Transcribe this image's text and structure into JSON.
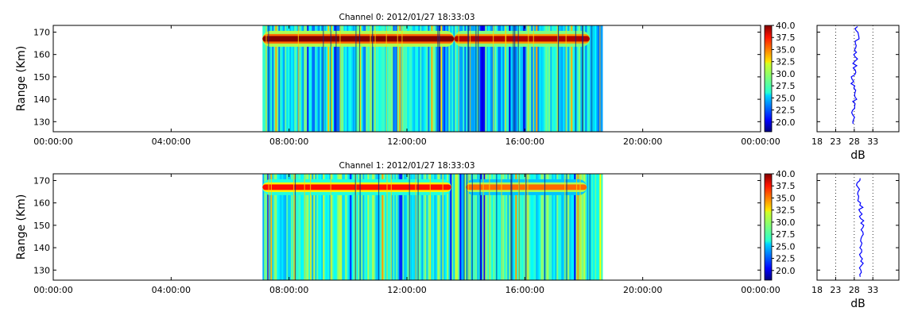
{
  "chart_data": [
    {
      "type": "heatmap",
      "title": "Channel 0: 2012/01/27 18:33:03",
      "xlabel": "",
      "ylabel": "Range (Km)",
      "x_tick_labels": [
        "00:00:00",
        "04:00:00",
        "08:00:00",
        "12:00:00",
        "16:00:00",
        "20:00:00",
        "00:00:00"
      ],
      "xlim_hours": [
        0,
        24
      ],
      "y_ticks": [
        130,
        140,
        150,
        160,
        170
      ],
      "ylim": [
        125.5,
        173
      ],
      "data_hours": [
        7.1,
        18.6
      ],
      "colorbar": {
        "ticks": [
          "40.0",
          "37.5",
          "35.0",
          "32.5",
          "30.0",
          "27.5",
          "25.0",
          "22.5",
          "20.0"
        ],
        "range": [
          18,
          40
        ],
        "colormap": "jet"
      },
      "echo_layers": [
        {
          "start_hour": 7.1,
          "end_hour": 13.6,
          "center_km": 167,
          "value_db": 40
        },
        {
          "start_hour": 13.6,
          "end_hour": 18.2,
          "center_km": 167,
          "value_db": 39
        }
      ],
      "profile": {
        "xlabel": "dB",
        "x_tick_labels": [
          "18",
          "23",
          "28",
          "33"
        ],
        "x_ticks": [
          18,
          23,
          28,
          33
        ],
        "xlim": [
          18,
          40
        ],
        "gridlines_db": [
          23,
          28,
          33
        ],
        "y": [
          129,
          133,
          137,
          141,
          145,
          149,
          153,
          157,
          161,
          165,
          169,
          172.5
        ],
        "x": [
          27.7,
          27.6,
          28.1,
          28.2,
          27.9,
          27.4,
          28.3,
          28.2,
          28.6,
          28.3,
          29.1,
          28.9
        ]
      }
    },
    {
      "type": "heatmap",
      "title": "Channel 1: 2012/01/27 18:33:03",
      "xlabel": "",
      "ylabel": "Range (Km)",
      "x_tick_labels": [
        "00:00:00",
        "04:00:00",
        "08:00:00",
        "12:00:00",
        "16:00:00",
        "20:00:00",
        "00:00:00"
      ],
      "xlim_hours": [
        0,
        24
      ],
      "y_ticks": [
        130,
        140,
        150,
        160,
        170
      ],
      "ylim": [
        125.5,
        173
      ],
      "data_hours": [
        7.1,
        18.6
      ],
      "colorbar": {
        "ticks": [
          "40.0",
          "37.5",
          "35.0",
          "32.5",
          "30.0",
          "27.5",
          "25.0",
          "22.5",
          "20.0"
        ],
        "range": [
          18,
          40
        ],
        "colormap": "jet"
      },
      "echo_layers": [
        {
          "start_hour": 7.1,
          "end_hour": 13.5,
          "center_km": 167,
          "value_db": 37
        },
        {
          "start_hour": 14.0,
          "end_hour": 18.1,
          "center_km": 167,
          "value_db": 35
        }
      ],
      "profile": {
        "xlabel": "dB",
        "x_tick_labels": [
          "18",
          "23",
          "28",
          "33"
        ],
        "x_ticks": [
          18,
          23,
          28,
          33
        ],
        "xlim": [
          18,
          40
        ],
        "gridlines_db": [
          23,
          28,
          33
        ],
        "y": [
          127,
          131,
          135,
          139,
          143,
          147,
          151,
          155,
          159,
          163,
          167,
          171
        ],
        "x": [
          29.6,
          29.4,
          30.2,
          30.0,
          29.7,
          30.3,
          29.8,
          30.1,
          29.5,
          29.2,
          29.0,
          29.6
        ]
      }
    }
  ]
}
